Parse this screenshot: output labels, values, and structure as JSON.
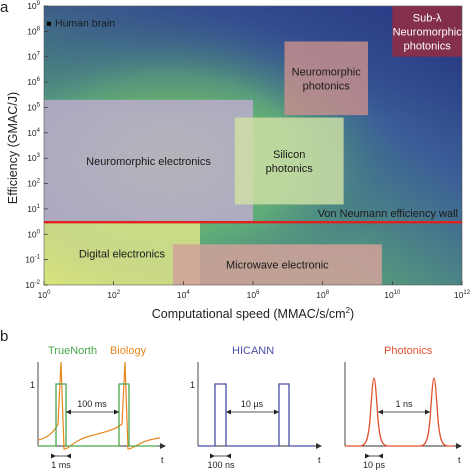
{
  "colors": {
    "von_neumann_wall": "#e0211f",
    "truenorth": "#4aa84a",
    "biology": "#e8861f",
    "hicann": "#4a4fa3",
    "photonics": "#e2502f",
    "human_brain_marker": "#000000"
  },
  "panel_a": {
    "letter": "a",
    "chart_data": {
      "type": "area",
      "xlabel": "Computational speed (MMAC/s/cm",
      "xlabel_sup": "2",
      "xlabel_end": ")",
      "ylabel": "Efficiency (GMAC/J)",
      "xscale": "log",
      "yscale": "log",
      "xlim": [
        1,
        1000000000000
      ],
      "ylim": [
        0.01,
        1000000000
      ],
      "x_ticks": [
        {
          "value": 1,
          "base": "10",
          "exp": "0"
        },
        {
          "value": 100,
          "base": "10",
          "exp": "2"
        },
        {
          "value": 10000,
          "base": "10",
          "exp": "4"
        },
        {
          "value": 1000000,
          "base": "10",
          "exp": "6"
        },
        {
          "value": 100000000,
          "base": "10",
          "exp": "8"
        },
        {
          "value": 10000000000,
          "base": "10",
          "exp": "10"
        },
        {
          "value": 1000000000000,
          "base": "10",
          "exp": "12"
        }
      ],
      "y_ticks": [
        {
          "value": 0.01,
          "base": "10",
          "exp": "-2"
        },
        {
          "value": 0.1,
          "base": "10",
          "exp": "-1"
        },
        {
          "value": 1,
          "base": "10",
          "exp": "0"
        },
        {
          "value": 10,
          "base": "10",
          "exp": "1"
        },
        {
          "value": 100,
          "base": "10",
          "exp": "2"
        },
        {
          "value": 1000,
          "base": "10",
          "exp": "3"
        },
        {
          "value": 10000,
          "base": "10",
          "exp": "4"
        },
        {
          "value": 100000,
          "base": "10",
          "exp": "5"
        },
        {
          "value": 1000000,
          "base": "10",
          "exp": "6"
        },
        {
          "value": 10000000,
          "base": "10",
          "exp": "7"
        },
        {
          "value": 100000000,
          "base": "10",
          "exp": "8"
        },
        {
          "value": 1000000000,
          "base": "10",
          "exp": "9"
        }
      ],
      "regions": [
        {
          "label": "Digital electronics",
          "lines": [
            "Digital electronics"
          ],
          "x": [
            1,
            30000
          ],
          "y": [
            0.01,
            3
          ],
          "color": "#f1ee8c",
          "opacity": 0.72,
          "text_color": "dark"
        },
        {
          "label": "Microwave electronic",
          "lines": [
            "Microwave electronic"
          ],
          "x": [
            5000,
            5000000000
          ],
          "y": [
            0.01,
            0.4
          ],
          "color": "#d2a19a",
          "opacity": 0.85,
          "text_color": "dark"
        },
        {
          "label": "Neuromorphic electronics",
          "lines": [
            "Neuromorphic electronics"
          ],
          "x": [
            1,
            1000000
          ],
          "y": [
            3,
            200000
          ],
          "color": "#c3acd5",
          "opacity": 0.78,
          "text_color": "dark"
        },
        {
          "label": "Silicon photonics",
          "lines": [
            "Silicon",
            "photonics"
          ],
          "x": [
            300000,
            400000000
          ],
          "y": [
            15,
            40000
          ],
          "color": "#cfe0a6",
          "opacity": 0.82,
          "text_color": "dark"
        },
        {
          "label": "Neuromorphic photonics",
          "lines": [
            "Neuromorphic",
            "photonics"
          ],
          "x": [
            8000000,
            2000000000
          ],
          "y": [
            50000,
            40000000
          ],
          "color": "#c9908c",
          "opacity": 0.82,
          "text_color": "dark"
        },
        {
          "label": "Sub-λ Neuromorphic photonics",
          "lines": [
            "Sub-λ",
            "Neuromorphic",
            "photonics"
          ],
          "x": [
            10000000000,
            1000000000000
          ],
          "y": [
            10000000,
            1000000000
          ],
          "color": "#8d2e47",
          "opacity": 0.9,
          "text_color": "light"
        }
      ],
      "wall": {
        "label": "Von Neumann efficiency wall",
        "y": 3
      },
      "human_brain": {
        "label": "Human brain",
        "x": 1,
        "y": 200000000
      }
    }
  },
  "panel_b": {
    "letter": "b",
    "axis_t": "t",
    "truenorth": {
      "title_a": "TrueNorth",
      "title_b": "Biology",
      "level_one": "1",
      "interval": "100 ms",
      "width": "1 ms"
    },
    "hicann": {
      "title": "HICANN",
      "level_one": "1",
      "interval": "10 µs",
      "width": "100 ns"
    },
    "photonics": {
      "title": "Photonics",
      "interval": "1 ns",
      "width": "10 ps"
    }
  }
}
